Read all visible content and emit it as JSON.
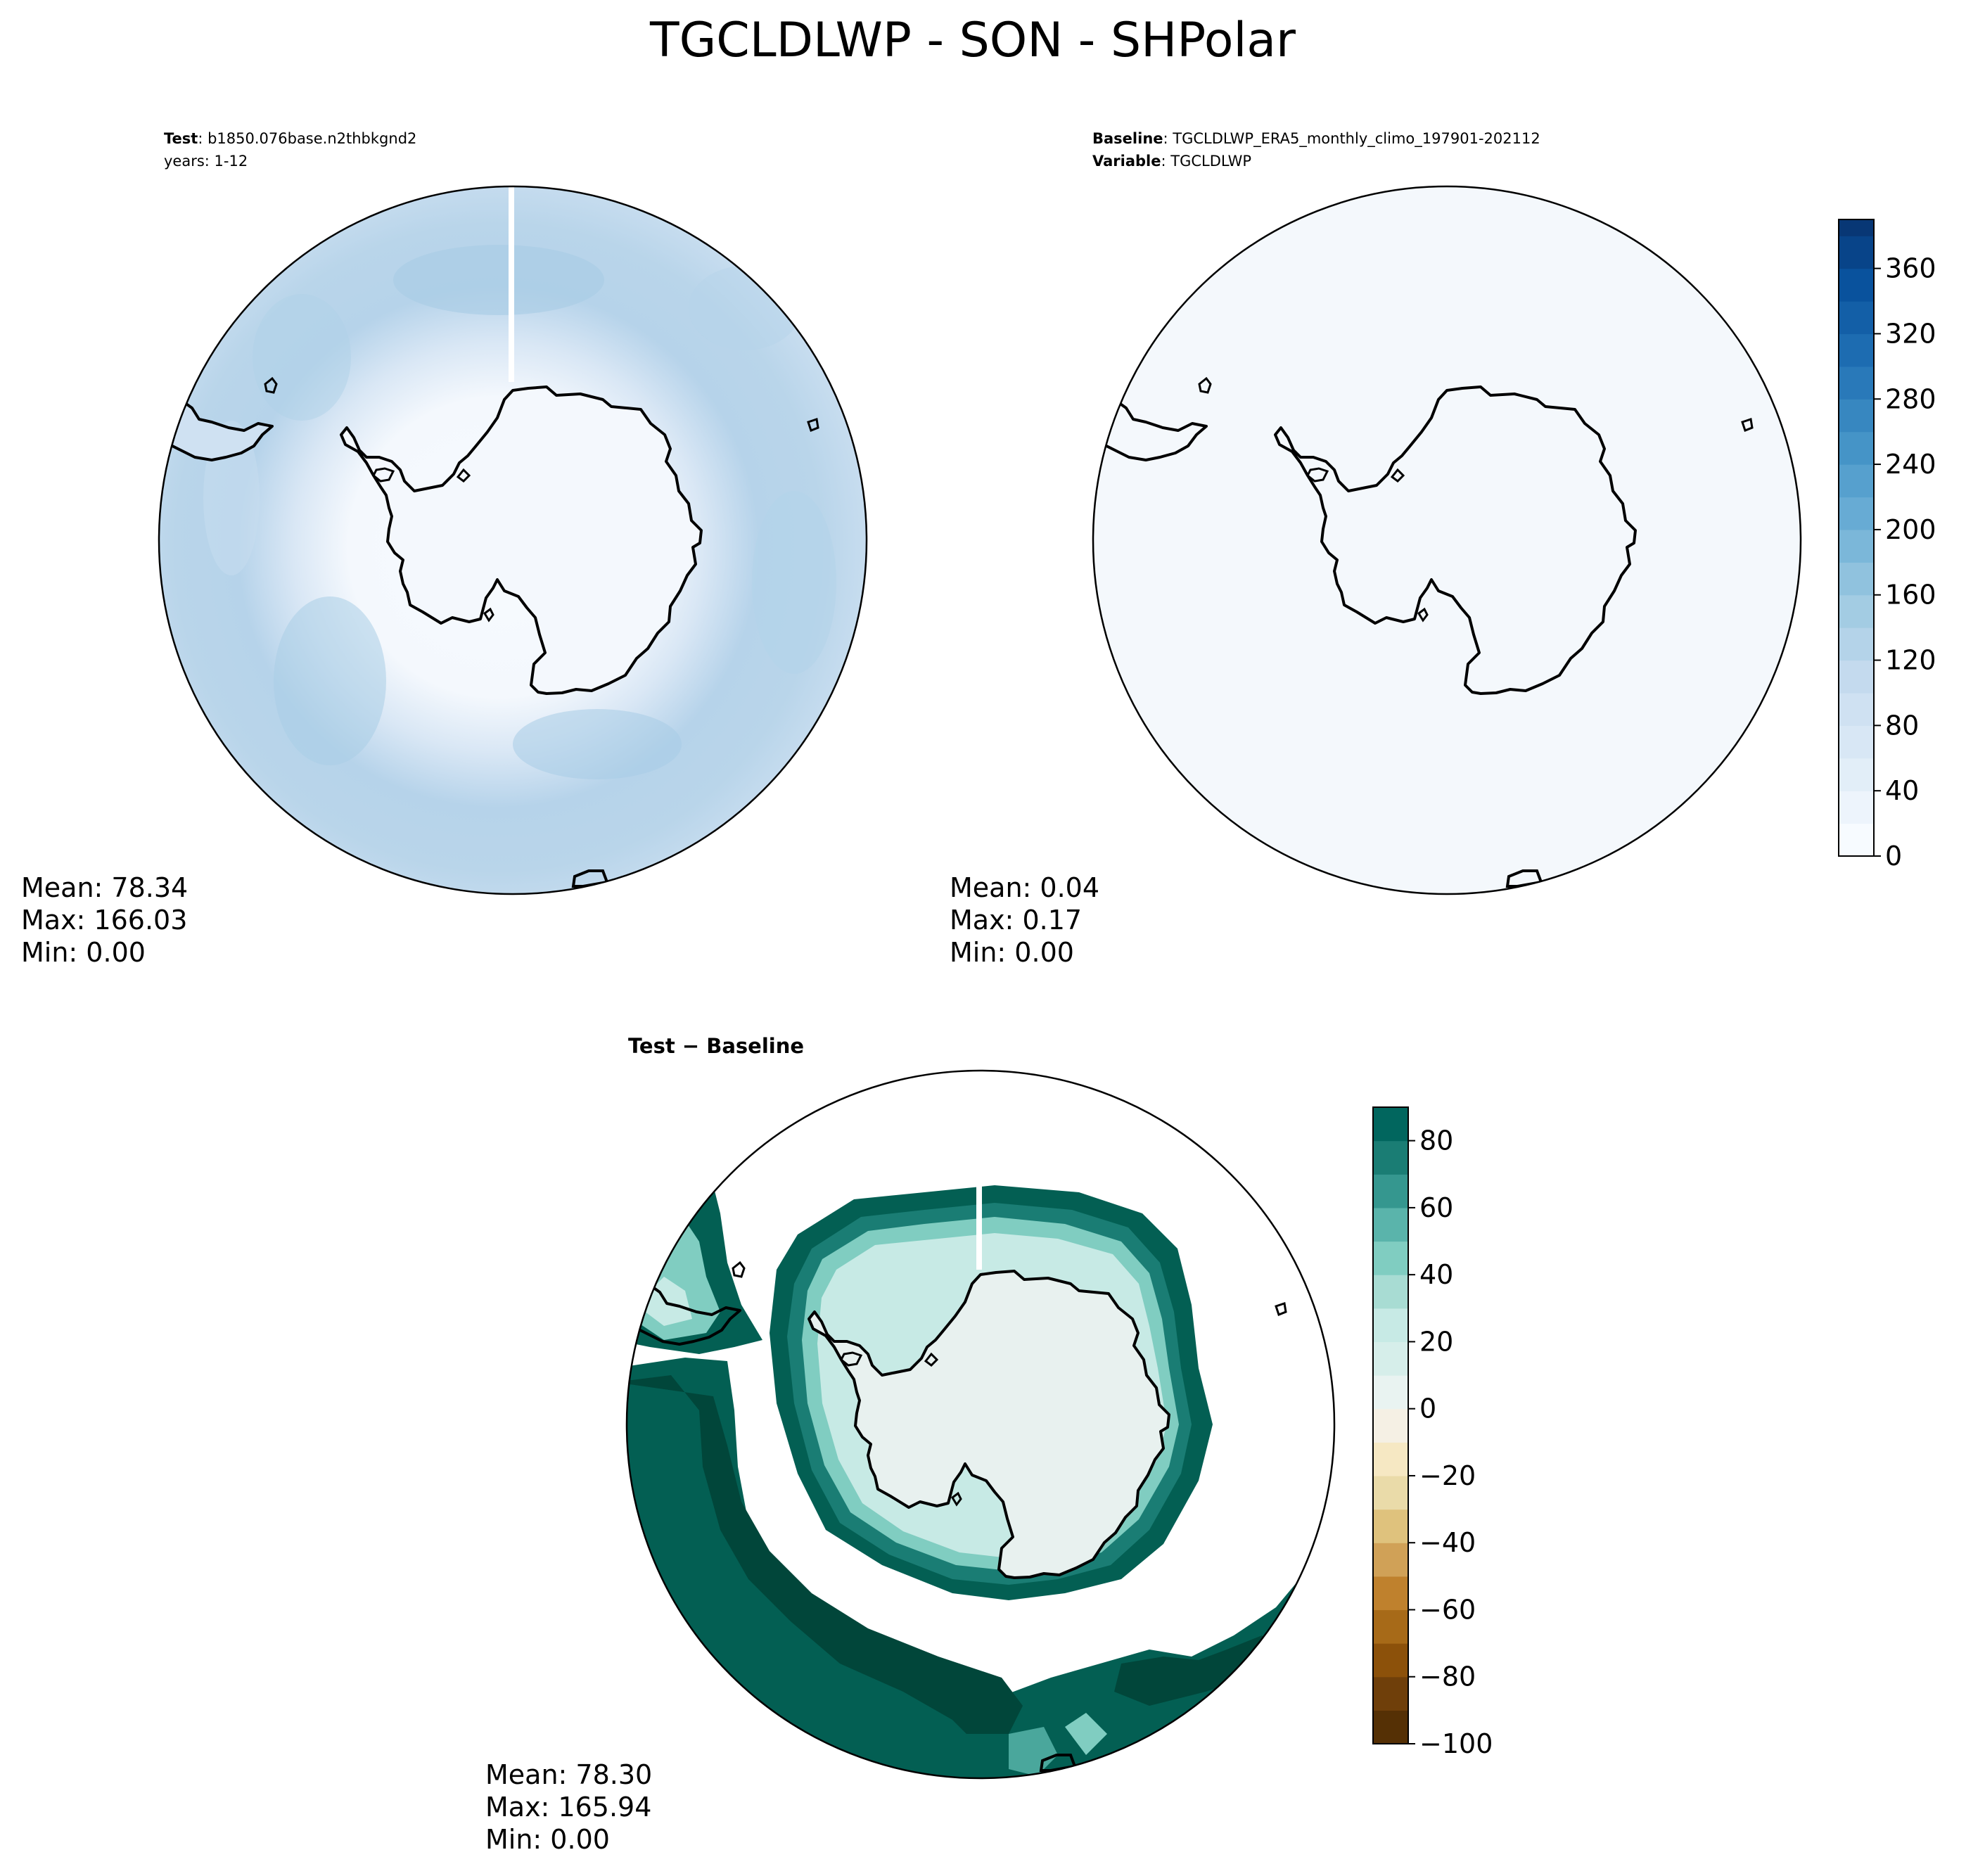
{
  "figure": {
    "title": "TGCLDLWP - SON - SHPolar"
  },
  "chart_data": [
    {
      "type": "heatmap",
      "projection": "south-polar-stereographic",
      "panel": "test",
      "header": {
        "label1": "Test",
        "text1": ": b1850.076base.n2thbkgnd2",
        "text2": "years: 1-12"
      },
      "stats": {
        "mean": "Mean: 78.34",
        "max": "Max: 166.03",
        "min": "Min:  0.00"
      },
      "field_description": "liquid water path, roughly 0 over Antarctica and 60-150 over the Southern Ocean",
      "colormap": "Blues",
      "colors": {
        "low": "#f7fbff",
        "mid": "#c6dbef",
        "high": "#9ecae1"
      }
    },
    {
      "type": "heatmap",
      "projection": "south-polar-stereographic",
      "panel": "baseline",
      "header": {
        "label1": "Baseline",
        "text1": ": TGCLDLWP_ERA5_monthly_climo_197901-202112",
        "label2": "Variable",
        "text2": ": TGCLDLWP"
      },
      "stats": {
        "mean": "Mean:  0.04",
        "max": "Max:  0.17",
        "min": "Min:  0.00"
      },
      "colormap": "Blues",
      "colors": {
        "fill": "#f4f8fc"
      },
      "colorbar": {
        "min": 0,
        "max": 390,
        "ticks": [
          "0",
          "40",
          "80",
          "120",
          "160",
          "200",
          "240",
          "280",
          "320",
          "360"
        ],
        "tick_values": [
          0,
          40,
          80,
          120,
          160,
          200,
          240,
          280,
          320,
          360
        ],
        "level_step": 20
      }
    },
    {
      "type": "heatmap",
      "projection": "south-polar-stereographic",
      "panel": "difference",
      "header": {
        "label1": "Test − Baseline"
      },
      "stats": {
        "mean": "Mean: 78.30",
        "max": "Max: 165.94",
        "min": "Min:  0.00"
      },
      "colormap": "BrBG",
      "colors": {
        "dark": "#01463a",
        "mid": "#035f53",
        "light": "#80cdc1",
        "center": "#e8f1ef"
      },
      "colorbar": {
        "min": -100,
        "max": 90,
        "ticks": [
          "80",
          "60",
          "40",
          "20",
          "0",
          "−20",
          "−40",
          "−60",
          "−80",
          "−100"
        ],
        "tick_values": [
          80,
          60,
          40,
          20,
          0,
          -20,
          -40,
          -60,
          -80,
          -100
        ],
        "level_step": 10,
        "colors": [
          "#553005",
          "#6f3f0a",
          "#8c510a",
          "#a76a18",
          "#bf812d",
          "#d0a157",
          "#dfc27d",
          "#eadba9",
          "#f6e8c3",
          "#f5f0e4",
          "#e9f3f1",
          "#d6eeea",
          "#c7eae5",
          "#a8dcd3",
          "#80cdc1",
          "#5ab4ab",
          "#35978f",
          "#1a7d74",
          "#01665e",
          "#004c42"
        ]
      }
    }
  ]
}
